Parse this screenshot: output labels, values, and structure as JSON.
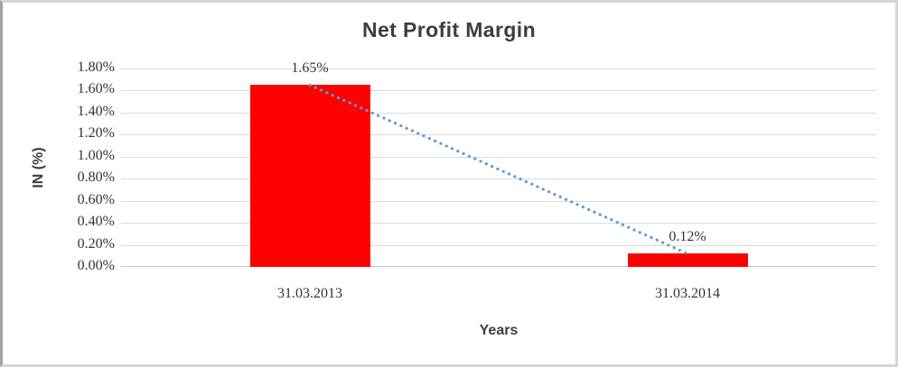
{
  "chart_data": {
    "type": "bar",
    "title": "Net Profit Margin",
    "xlabel": "Years",
    "ylabel": "IN (%)",
    "categories": [
      "31.03.2013",
      "31.03.2014"
    ],
    "values": [
      1.65,
      0.12
    ],
    "value_labels": [
      "1.65%",
      "0.12%"
    ],
    "ylim": [
      0,
      1.8
    ],
    "ytick_step": 0.2,
    "ytick_labels": [
      "0.00%",
      "0.20%",
      "0.40%",
      "0.60%",
      "0.80%",
      "1.00%",
      "1.20%",
      "1.40%",
      "1.60%",
      "1.80%"
    ],
    "grid": true,
    "legend_position": "none",
    "bar_color": "#ff0000",
    "gridline_color": "#d9d9d9",
    "text_color": "#3d3d3d",
    "trendline": {
      "style": "dotted",
      "color": "#5b9bd5",
      "from_value": 1.65,
      "to_value": 0.12
    }
  }
}
